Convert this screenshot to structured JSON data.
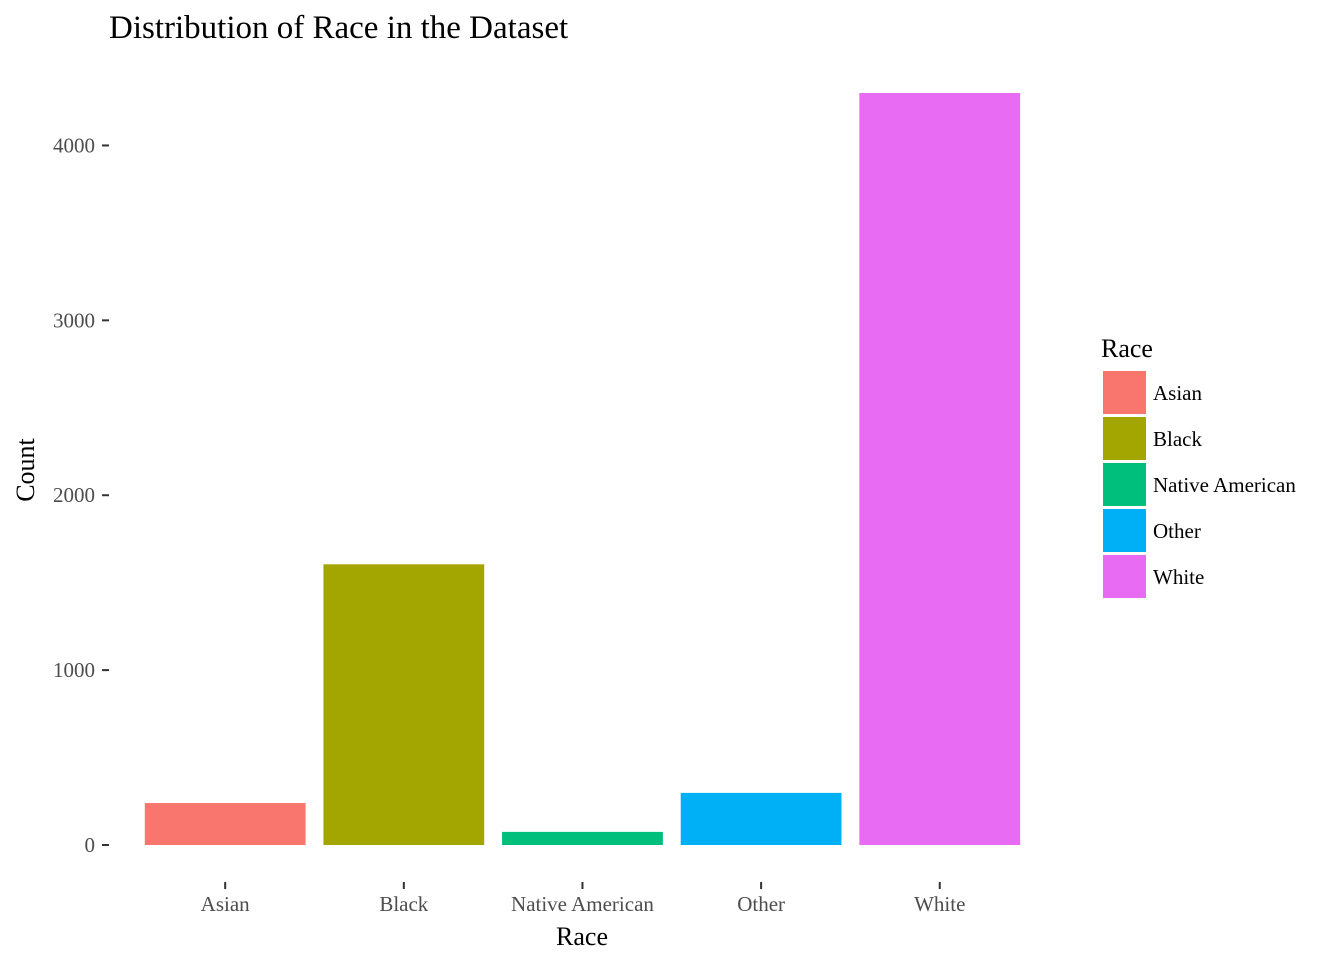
{
  "chart_data": {
    "type": "bar",
    "title": "Distribution of Race in the Dataset",
    "xlabel": "Race",
    "ylabel": "Count",
    "categories": [
      "Asian",
      "Black",
      "Native American",
      "Other",
      "White"
    ],
    "values": [
      240,
      1605,
      75,
      298,
      4300
    ],
    "colors": [
      "#F8766D",
      "#A3A500",
      "#00BF7D",
      "#00B0F6",
      "#E76BF3"
    ],
    "ylim": [
      0,
      4300
    ],
    "yticks": [
      0,
      1000,
      2000,
      3000,
      4000
    ],
    "grid": false,
    "legend": {
      "title": "Race",
      "position": "right",
      "entries": [
        "Asian",
        "Black",
        "Native American",
        "Other",
        "White"
      ]
    }
  }
}
